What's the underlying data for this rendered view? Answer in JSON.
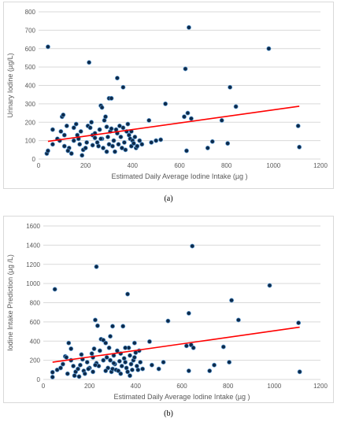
{
  "figure": {
    "panel_labels": [
      "(a)",
      "(b)"
    ]
  },
  "colors": {
    "marker_fill": "#0d2a4a",
    "marker_edge": "#5b9bd5",
    "trendline": "#ff0000",
    "gridline": "#d9d9d9",
    "axis_text": "#595959"
  },
  "chart_data": [
    {
      "type": "scatter",
      "title": "",
      "xlabel": "Estimated Daily Average Iodine Intake (µg )",
      "ylabel": "Urinary Iodine (µg/L)",
      "xlim": [
        0,
        1200
      ],
      "ylim": [
        0,
        800
      ],
      "xticks": [
        0,
        200,
        400,
        600,
        800,
        1000,
        1200
      ],
      "yticks": [
        0,
        100,
        200,
        300,
        400,
        500,
        600,
        700,
        800
      ],
      "grid": "horizontal",
      "trendline": {
        "x": [
          40,
          1110
        ],
        "y": [
          96,
          287
        ],
        "color": "#ff0000"
      },
      "points": [
        [
          40,
          610
        ],
        [
          215,
          525
        ],
        [
          640,
          715
        ],
        [
          980,
          600
        ],
        [
          625,
          490
        ],
        [
          815,
          390
        ],
        [
          335,
          440
        ],
        [
          360,
          390
        ],
        [
          300,
          330
        ],
        [
          310,
          330
        ],
        [
          265,
          290
        ],
        [
          270,
          280
        ],
        [
          540,
          300
        ],
        [
          840,
          285
        ],
        [
          1105,
          180
        ],
        [
          1110,
          65
        ],
        [
          35,
          30
        ],
        [
          40,
          45
        ],
        [
          60,
          80
        ],
        [
          80,
          110
        ],
        [
          90,
          100
        ],
        [
          95,
          150
        ],
        [
          100,
          230
        ],
        [
          105,
          240
        ],
        [
          110,
          130
        ],
        [
          120,
          180
        ],
        [
          130,
          60
        ],
        [
          140,
          30
        ],
        [
          150,
          170
        ],
        [
          160,
          190
        ],
        [
          170,
          110
        ],
        [
          175,
          80
        ],
        [
          180,
          150
        ],
        [
          190,
          50
        ],
        [
          200,
          60
        ],
        [
          210,
          180
        ],
        [
          220,
          170
        ],
        [
          225,
          200
        ],
        [
          230,
          130
        ],
        [
          240,
          140
        ],
        [
          250,
          90
        ],
        [
          255,
          70
        ],
        [
          260,
          160
        ],
        [
          270,
          110
        ],
        [
          275,
          60
        ],
        [
          280,
          210
        ],
        [
          285,
          230
        ],
        [
          290,
          175
        ],
        [
          295,
          120
        ],
        [
          300,
          80
        ],
        [
          305,
          150
        ],
        [
          310,
          165
        ],
        [
          315,
          70
        ],
        [
          320,
          100
        ],
        [
          325,
          40
        ],
        [
          330,
          160
        ],
        [
          335,
          140
        ],
        [
          340,
          80
        ],
        [
          350,
          120
        ],
        [
          355,
          60
        ],
        [
          360,
          170
        ],
        [
          365,
          90
        ],
        [
          370,
          50
        ],
        [
          375,
          150
        ],
        [
          380,
          190
        ],
        [
          385,
          130
        ],
        [
          390,
          110
        ],
        [
          395,
          70
        ],
        [
          400,
          100
        ],
        [
          405,
          85
        ],
        [
          410,
          120
        ],
        [
          415,
          60
        ],
        [
          420,
          70
        ],
        [
          430,
          100
        ],
        [
          440,
          80
        ],
        [
          470,
          210
        ],
        [
          480,
          90
        ],
        [
          500,
          100
        ],
        [
          520,
          105
        ],
        [
          620,
          230
        ],
        [
          630,
          45
        ],
        [
          635,
          250
        ],
        [
          650,
          220
        ],
        [
          720,
          60
        ],
        [
          740,
          95
        ],
        [
          780,
          210
        ],
        [
          805,
          85
        ],
        [
          60,
          160
        ],
        [
          110,
          70
        ],
        [
          165,
          130
        ],
        [
          205,
          90
        ],
        [
          240,
          115
        ],
        [
          290,
          40
        ],
        [
          345,
          180
        ],
        [
          395,
          150
        ],
        [
          150,
          100
        ],
        [
          125,
          45
        ],
        [
          185,
          20
        ],
        [
          230,
          75
        ],
        [
          265,
          110
        ]
      ]
    },
    {
      "type": "scatter",
      "title": "",
      "xlabel": "Estimated Daily Average Iodine Intake (µg )",
      "ylabel": "Iodine Intake Prediction (µg /L)",
      "xlim": [
        0,
        1200
      ],
      "ylim": [
        0,
        1600
      ],
      "xticks": [
        0,
        200,
        400,
        600,
        800,
        1000,
        1200
      ],
      "yticks": [
        0,
        200,
        400,
        600,
        800,
        1000,
        1200,
        1400,
        1600
      ],
      "grid": "horizontal",
      "trendline": {
        "x": [
          40,
          1110
        ],
        "y": [
          180,
          545
        ],
        "color": "#ff0000"
      },
      "points": [
        [
          50,
          940
        ],
        [
          230,
          1175
        ],
        [
          645,
          1390
        ],
        [
          980,
          980
        ],
        [
          365,
          890
        ],
        [
          815,
          825
        ],
        [
          630,
          690
        ],
        [
          845,
          620
        ],
        [
          1105,
          590
        ],
        [
          1110,
          80
        ],
        [
          540,
          610
        ],
        [
          225,
          620
        ],
        [
          235,
          560
        ],
        [
          300,
          555
        ],
        [
          345,
          555
        ],
        [
          460,
          395
        ],
        [
          40,
          25
        ],
        [
          40,
          75
        ],
        [
          60,
          100
        ],
        [
          75,
          120
        ],
        [
          85,
          160
        ],
        [
          95,
          240
        ],
        [
          100,
          230
        ],
        [
          110,
          380
        ],
        [
          120,
          200
        ],
        [
          130,
          140
        ],
        [
          140,
          80
        ],
        [
          150,
          110
        ],
        [
          160,
          150
        ],
        [
          170,
          210
        ],
        [
          175,
          90
        ],
        [
          180,
          60
        ],
        [
          190,
          180
        ],
        [
          200,
          120
        ],
        [
          210,
          270
        ],
        [
          215,
          80
        ],
        [
          220,
          320
        ],
        [
          230,
          170
        ],
        [
          240,
          140
        ],
        [
          250,
          420
        ],
        [
          260,
          410
        ],
        [
          270,
          380
        ],
        [
          275,
          230
        ],
        [
          280,
          120
        ],
        [
          285,
          330
        ],
        [
          290,
          200
        ],
        [
          295,
          80
        ],
        [
          300,
          110
        ],
        [
          305,
          250
        ],
        [
          310,
          160
        ],
        [
          315,
          100
        ],
        [
          320,
          300
        ],
        [
          325,
          90
        ],
        [
          330,
          190
        ],
        [
          335,
          270
        ],
        [
          340,
          140
        ],
        [
          350,
          220
        ],
        [
          355,
          180
        ],
        [
          360,
          120
        ],
        [
          365,
          80
        ],
        [
          370,
          330
        ],
        [
          375,
          250
        ],
        [
          380,
          160
        ],
        [
          385,
          100
        ],
        [
          390,
          200
        ],
        [
          395,
          380
        ],
        [
          400,
          280
        ],
        [
          405,
          140
        ],
        [
          410,
          100
        ],
        [
          420,
          180
        ],
        [
          430,
          110
        ],
        [
          470,
          150
        ],
        [
          500,
          110
        ],
        [
          520,
          180
        ],
        [
          620,
          350
        ],
        [
          630,
          90
        ],
        [
          640,
          360
        ],
        [
          650,
          330
        ],
        [
          720,
          90
        ],
        [
          740,
          150
        ],
        [
          780,
          340
        ],
        [
          805,
          180
        ],
        [
          105,
          60
        ],
        [
          135,
          40
        ],
        [
          195,
          110
        ],
        [
          245,
          300
        ],
        [
          260,
          200
        ],
        [
          290,
          450
        ],
        [
          335,
          60
        ],
        [
          375,
          40
        ],
        [
          415,
          300
        ],
        [
          155,
          30
        ],
        [
          215,
          230
        ],
        [
          355,
          330
        ],
        [
          395,
          230
        ],
        [
          120,
          320
        ],
        [
          165,
          260
        ],
        [
          225,
          150
        ],
        [
          270,
          90
        ],
        [
          305,
          170
        ]
      ]
    }
  ]
}
